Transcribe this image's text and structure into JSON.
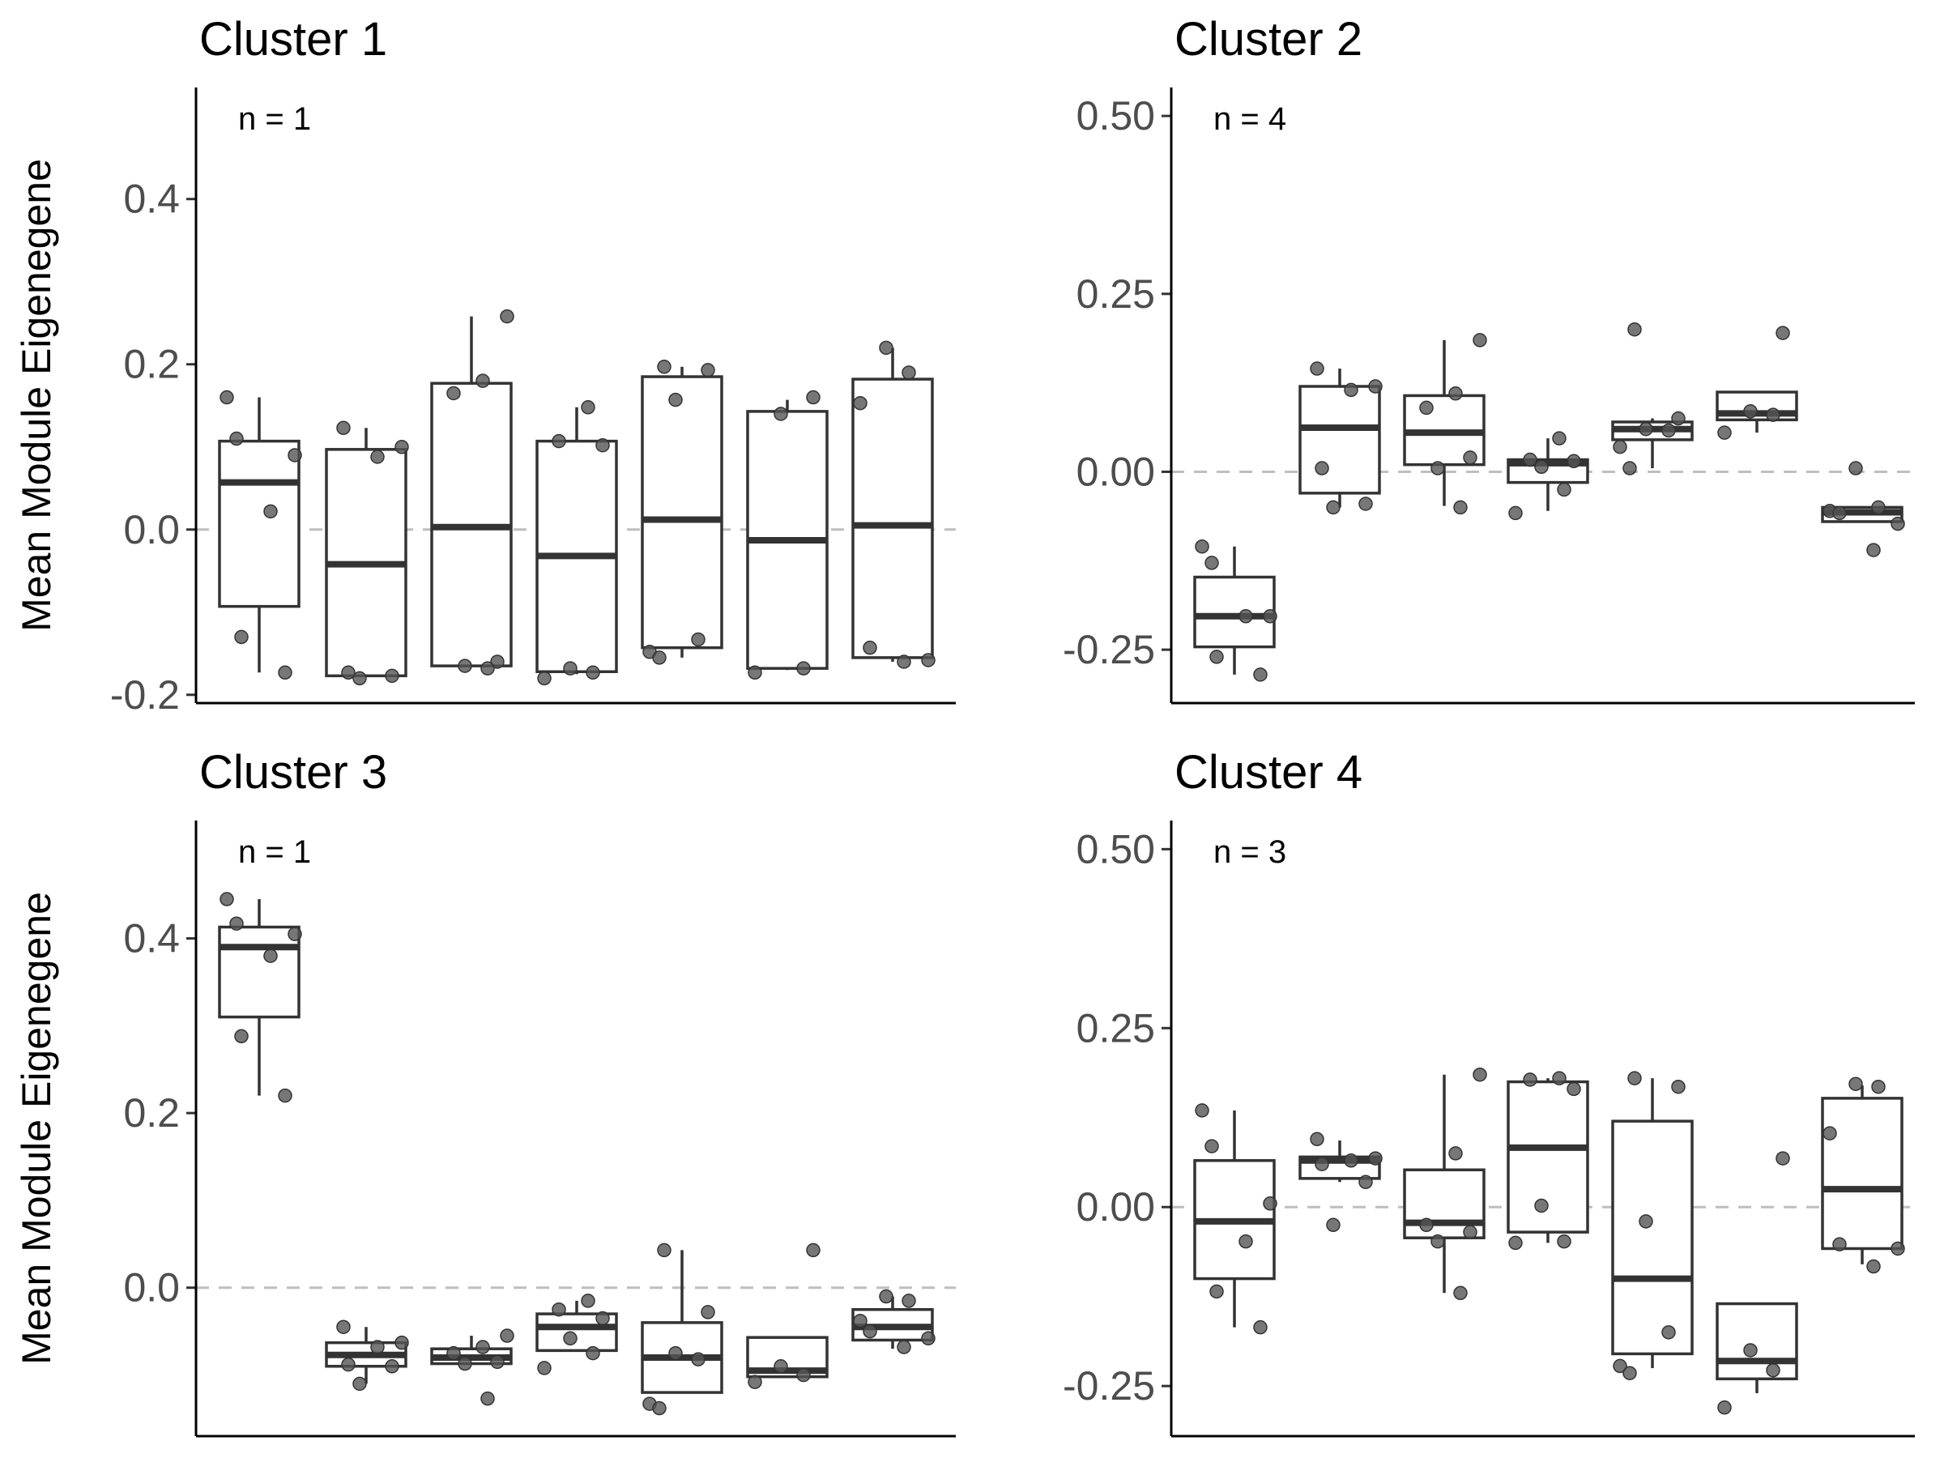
{
  "figure": {
    "ylabel": "Mean Module Eigenegene"
  },
  "chart_data": [
    {
      "type": "box",
      "title": "Cluster 1",
      "annotation": "n = 1",
      "xlabel": "",
      "ylabel": "Mean Module Eigenegene",
      "ylim": [
        -0.21,
        0.535
      ],
      "yticks": [
        -0.2,
        0.0,
        0.2,
        0.4
      ],
      "ytick_labels": [
        "-0.2",
        "0.0",
        "0.2",
        "0.4"
      ],
      "reference_line": 0.0,
      "boxes": [
        {
          "q1": -0.093,
          "median": 0.057,
          "q3": 0.107,
          "whisker_low": -0.173,
          "whisker_high": 0.16,
          "points": [
            0.16,
            0.11,
            0.09,
            0.022,
            -0.13,
            -0.173
          ]
        },
        {
          "q1": -0.177,
          "median": -0.042,
          "q3": 0.097,
          "whisker_low": -0.177,
          "whisker_high": 0.123,
          "points": [
            0.123,
            0.1,
            0.088,
            -0.173,
            -0.177,
            -0.18
          ]
        },
        {
          "q1": -0.165,
          "median": 0.003,
          "q3": 0.177,
          "whisker_low": -0.165,
          "whisker_high": 0.258,
          "points": [
            0.258,
            0.18,
            0.165,
            -0.16,
            -0.165,
            -0.168
          ]
        },
        {
          "q1": -0.172,
          "median": -0.032,
          "q3": 0.107,
          "whisker_low": -0.175,
          "whisker_high": 0.148,
          "points": [
            0.148,
            0.107,
            0.102,
            -0.168,
            -0.173,
            -0.18
          ]
        },
        {
          "q1": -0.143,
          "median": 0.012,
          "q3": 0.185,
          "whisker_low": -0.155,
          "whisker_high": 0.197,
          "points": [
            0.197,
            0.193,
            0.157,
            -0.133,
            -0.148,
            -0.155
          ]
        },
        {
          "q1": -0.168,
          "median": -0.013,
          "q3": 0.143,
          "whisker_low": -0.17,
          "whisker_high": 0.157,
          "points": [
            0.16,
            0.14,
            -0.168,
            -0.173
          ]
        },
        {
          "q1": -0.155,
          "median": 0.005,
          "q3": 0.182,
          "whisker_low": -0.16,
          "whisker_high": 0.22,
          "points": [
            0.22,
            0.19,
            0.153,
            -0.143,
            -0.158,
            -0.16
          ]
        }
      ]
    },
    {
      "type": "box",
      "title": "Cluster 2",
      "annotation": "n = 4",
      "xlabel": "",
      "ylabel": "",
      "ylim": [
        -0.325,
        0.54
      ],
      "yticks": [
        -0.25,
        0.0,
        0.25,
        0.5
      ],
      "ytick_labels": [
        "-0.25",
        "0.00",
        "0.25",
        "0.50"
      ],
      "reference_line": 0.0,
      "boxes": [
        {
          "q1": -0.246,
          "median": -0.203,
          "q3": -0.148,
          "whisker_low": -0.285,
          "whisker_high": -0.105,
          "points": [
            -0.105,
            -0.128,
            -0.203,
            -0.203,
            -0.26,
            -0.285
          ]
        },
        {
          "q1": -0.03,
          "median": 0.062,
          "q3": 0.12,
          "whisker_low": -0.05,
          "whisker_high": 0.145,
          "points": [
            0.145,
            0.12,
            0.115,
            0.005,
            -0.045,
            -0.05
          ]
        },
        {
          "q1": 0.01,
          "median": 0.055,
          "q3": 0.107,
          "whisker_low": -0.048,
          "whisker_high": 0.185,
          "points": [
            0.185,
            0.11,
            0.09,
            0.02,
            0.005,
            -0.05
          ]
        },
        {
          "q1": -0.015,
          "median": 0.012,
          "q3": 0.017,
          "whisker_low": -0.055,
          "whisker_high": 0.047,
          "points": [
            0.047,
            0.017,
            0.015,
            0.007,
            -0.025,
            -0.058
          ]
        },
        {
          "q1": 0.045,
          "median": 0.06,
          "q3": 0.07,
          "whisker_low": 0.005,
          "whisker_high": 0.075,
          "points": [
            0.2,
            0.075,
            0.06,
            0.058,
            0.035,
            0.005
          ]
        },
        {
          "q1": 0.073,
          "median": 0.082,
          "q3": 0.112,
          "whisker_low": 0.055,
          "whisker_high": 0.112,
          "points": [
            0.195,
            0.085,
            0.08,
            0.055
          ]
        },
        {
          "q1": -0.07,
          "median": -0.057,
          "q3": -0.05,
          "whisker_low": -0.07,
          "whisker_high": -0.05,
          "points": [
            0.005,
            -0.05,
            -0.055,
            -0.058,
            -0.073,
            -0.11
          ]
        }
      ]
    },
    {
      "type": "box",
      "title": "Cluster 3",
      "annotation": "n = 1",
      "xlabel": "",
      "ylabel": "Mean Module Eigenegene",
      "ylim": [
        -0.17,
        0.535
      ],
      "yticks": [
        0.0,
        0.2,
        0.4
      ],
      "ytick_labels": [
        "0.0",
        "0.2",
        "0.4"
      ],
      "reference_line": 0.0,
      "boxes": [
        {
          "q1": 0.31,
          "median": 0.39,
          "q3": 0.413,
          "whisker_low": 0.22,
          "whisker_high": 0.445,
          "points": [
            0.445,
            0.417,
            0.405,
            0.38,
            0.288,
            0.22
          ]
        },
        {
          "q1": -0.09,
          "median": -0.077,
          "q3": -0.063,
          "whisker_low": -0.11,
          "whisker_high": -0.045,
          "points": [
            -0.045,
            -0.063,
            -0.068,
            -0.088,
            -0.09,
            -0.11
          ]
        },
        {
          "q1": -0.087,
          "median": -0.08,
          "q3": -0.07,
          "whisker_low": -0.087,
          "whisker_high": -0.055,
          "points": [
            -0.055,
            -0.068,
            -0.075,
            -0.085,
            -0.087,
            -0.127
          ]
        },
        {
          "q1": -0.072,
          "median": -0.045,
          "q3": -0.03,
          "whisker_low": -0.072,
          "whisker_high": -0.015,
          "points": [
            -0.015,
            -0.025,
            -0.035,
            -0.058,
            -0.075,
            -0.092
          ]
        },
        {
          "q1": -0.12,
          "median": -0.08,
          "q3": -0.04,
          "whisker_low": -0.12,
          "whisker_high": 0.043,
          "points": [
            0.043,
            -0.028,
            -0.075,
            -0.082,
            -0.133,
            -0.138
          ]
        },
        {
          "q1": -0.102,
          "median": -0.095,
          "q3": -0.057,
          "whisker_low": -0.102,
          "whisker_high": -0.057,
          "points": [
            0.043,
            -0.09,
            -0.1,
            -0.108
          ]
        },
        {
          "q1": -0.06,
          "median": -0.045,
          "q3": -0.025,
          "whisker_low": -0.07,
          "whisker_high": -0.01,
          "points": [
            -0.01,
            -0.015,
            -0.038,
            -0.05,
            -0.058,
            -0.068
          ]
        }
      ]
    },
    {
      "type": "box",
      "title": "Cluster 4",
      "annotation": "n = 3",
      "xlabel": "",
      "ylabel": "",
      "ylim": [
        -0.32,
        0.54
      ],
      "yticks": [
        -0.25,
        0.0,
        0.25,
        0.5
      ],
      "ytick_labels": [
        "-0.25",
        "0.00",
        "0.25",
        "0.50"
      ],
      "reference_line": 0.0,
      "boxes": [
        {
          "q1": -0.1,
          "median": -0.02,
          "q3": 0.065,
          "whisker_low": -0.168,
          "whisker_high": 0.135,
          "points": [
            0.135,
            0.085,
            0.005,
            -0.048,
            -0.118,
            -0.168
          ]
        },
        {
          "q1": 0.04,
          "median": 0.065,
          "q3": 0.07,
          "whisker_low": 0.035,
          "whisker_high": 0.093,
          "points": [
            0.095,
            0.068,
            0.065,
            0.06,
            0.035,
            -0.025
          ]
        },
        {
          "q1": -0.043,
          "median": -0.022,
          "q3": 0.052,
          "whisker_low": -0.12,
          "whisker_high": 0.185,
          "points": [
            0.185,
            0.075,
            -0.025,
            -0.035,
            -0.048,
            -0.12
          ]
        },
        {
          "q1": -0.035,
          "median": 0.083,
          "q3": 0.175,
          "whisker_low": -0.05,
          "whisker_high": 0.18,
          "points": [
            0.18,
            0.178,
            0.165,
            0.002,
            -0.048,
            -0.05
          ]
        },
        {
          "q1": -0.205,
          "median": -0.1,
          "q3": 0.12,
          "whisker_low": -0.225,
          "whisker_high": 0.18,
          "points": [
            0.18,
            0.168,
            -0.02,
            -0.175,
            -0.222,
            -0.232
          ]
        },
        {
          "q1": -0.24,
          "median": -0.215,
          "q3": -0.135,
          "whisker_low": -0.26,
          "whisker_high": -0.135,
          "points": [
            0.068,
            -0.2,
            -0.228,
            -0.28
          ]
        },
        {
          "q1": -0.058,
          "median": 0.025,
          "q3": 0.152,
          "whisker_low": -0.08,
          "whisker_high": 0.17,
          "points": [
            0.172,
            0.168,
            0.103,
            -0.052,
            -0.058,
            -0.083
          ]
        }
      ]
    }
  ]
}
